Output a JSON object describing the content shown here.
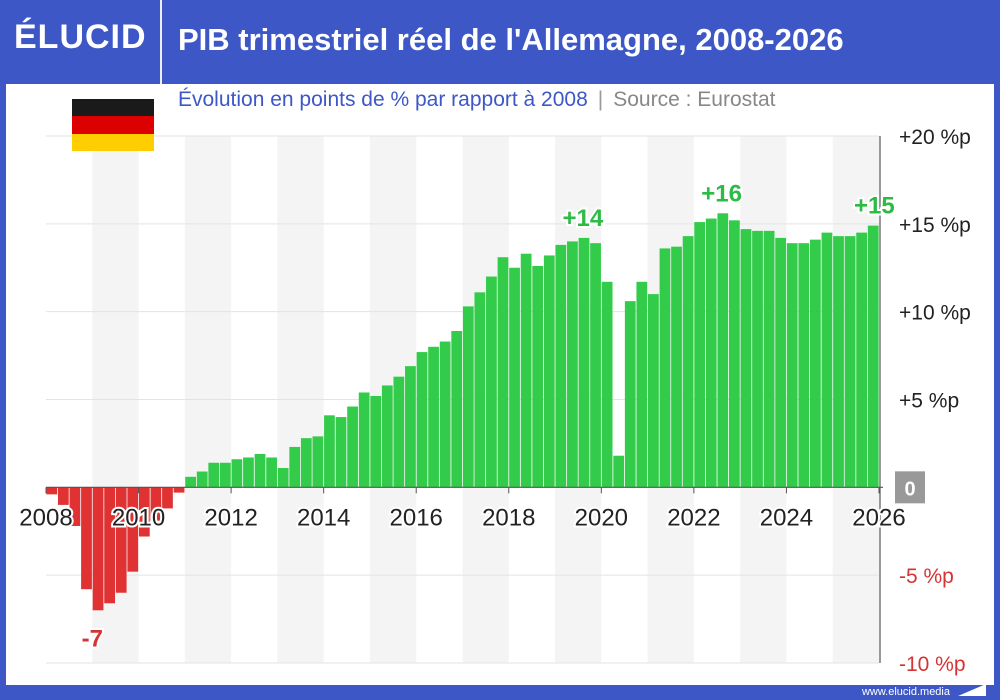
{
  "header": {
    "logo_text": "ÉLUCID",
    "title": "PIB trimestriel réel de l'Allemagne, 2008-2026"
  },
  "subheader": {
    "subtitle": "Évolution en points de % par rapport à 2008",
    "separator": "|",
    "source": "Source : Eurostat"
  },
  "footer": {
    "url": "www.elucid.media"
  },
  "colors": {
    "brand_blue": "#3d57c6",
    "positive": "#33cc4a",
    "negative": "#e03232",
    "negative_label": "#d63434",
    "positive_label": "#2dbb45",
    "zero_badge": "#999999"
  },
  "flag": {
    "colors": [
      "#1a1a1a",
      "#dd0000",
      "#ffce00"
    ]
  },
  "chart_data": {
    "type": "bar",
    "title": "PIB trimestriel réel de l'Allemagne, 2008-2026",
    "subtitle": "Évolution en points de % par rapport à 2008",
    "ylabel": "",
    "xlabel": "",
    "ylim": [
      -10,
      20
    ],
    "xlim": [
      2008,
      2026
    ],
    "y_ticks": [
      {
        "value": 20,
        "label": "+20 %p"
      },
      {
        "value": 15,
        "label": "+15 %p"
      },
      {
        "value": 10,
        "label": "+10 %p"
      },
      {
        "value": 5,
        "label": "+5 %p"
      },
      {
        "value": 0,
        "label": "0"
      },
      {
        "value": -5,
        "label": "-5 %p"
      },
      {
        "value": -10,
        "label": "-10 %p"
      }
    ],
    "x_ticks": [
      "2008",
      "2010",
      "2012",
      "2014",
      "2016",
      "2018",
      "2020",
      "2022",
      "2024",
      "2026"
    ],
    "grid": true,
    "legend": "none",
    "series": [
      {
        "values": [
          -0.4,
          -1.0,
          -2.2,
          -5.8,
          -7.0,
          -6.6,
          -6.0,
          -4.8,
          -2.8,
          -1.9,
          -1.2,
          -0.3,
          0.6,
          0.9,
          1.4,
          1.4,
          1.6,
          1.7,
          1.9,
          1.7,
          1.1,
          2.3,
          2.8,
          2.9,
          4.1,
          4.0,
          4.6,
          5.4,
          5.2,
          5.8,
          6.3,
          6.9,
          7.7,
          8.0,
          8.3,
          8.9,
          10.3,
          11.1,
          12.0,
          13.1,
          12.5,
          13.3,
          12.6,
          13.2,
          13.8,
          14.0,
          14.2,
          13.9,
          11.7,
          1.8,
          10.6,
          11.7,
          11.0,
          13.6,
          13.7,
          14.3,
          15.1,
          15.3,
          15.6,
          15.2,
          14.7,
          14.6,
          14.6,
          14.2,
          13.9,
          13.9,
          14.1,
          14.5,
          14.3,
          14.3,
          14.5,
          14.9
        ]
      }
    ],
    "annotations": [
      {
        "label": "-7",
        "x": 2009.0,
        "y": -7.0
      },
      {
        "label": "+14",
        "x": 2019.6,
        "y": 14.2
      },
      {
        "label": "+16",
        "x": 2022.6,
        "y": 15.6
      },
      {
        "label": "+15",
        "x": 2025.9,
        "y": 14.9
      }
    ]
  }
}
